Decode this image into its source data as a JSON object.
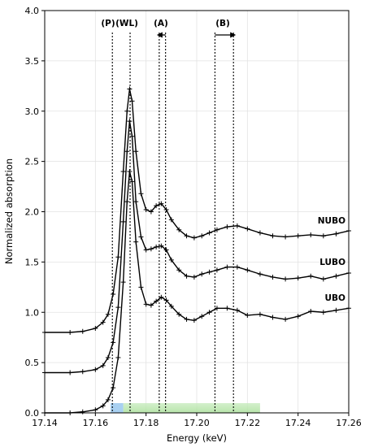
{
  "chart_data": {
    "type": "line",
    "xlabel": "Energy (keV)",
    "ylabel": "Normalized absorption",
    "xlim": [
      17.14,
      17.26
    ],
    "ylim": [
      0.0,
      4.0
    ],
    "x_ticks": [
      "17.14",
      "17.16",
      "17.18",
      "17.20",
      "17.22",
      "17.24",
      "17.26"
    ],
    "y_ticks": [
      "0.0",
      "0.5",
      "1.0",
      "1.5",
      "2.0",
      "2.5",
      "3.0",
      "3.5",
      "4.0"
    ],
    "grid": true,
    "series": [
      {
        "name": "UBO",
        "x": [
          17.14,
          17.15,
          17.155,
          17.16,
          17.163,
          17.165,
          17.167,
          17.169,
          17.171,
          17.1725,
          17.1735,
          17.1745,
          17.176,
          17.178,
          17.18,
          17.182,
          17.184,
          17.186,
          17.188,
          17.19,
          17.193,
          17.196,
          17.199,
          17.202,
          17.205,
          17.208,
          17.212,
          17.216,
          17.22,
          17.225,
          17.23,
          17.235,
          17.24,
          17.245,
          17.25,
          17.255,
          17.26
        ],
        "y": [
          0.0,
          0.0,
          0.01,
          0.03,
          0.07,
          0.13,
          0.25,
          0.55,
          1.3,
          2.1,
          2.4,
          2.3,
          1.7,
          1.25,
          1.08,
          1.07,
          1.11,
          1.15,
          1.12,
          1.06,
          0.98,
          0.93,
          0.92,
          0.96,
          1.0,
          1.04,
          1.04,
          1.02,
          0.97,
          0.98,
          0.95,
          0.93,
          0.96,
          1.01,
          1.0,
          1.02,
          1.04
        ]
      },
      {
        "name": "LUBO",
        "x": [
          17.14,
          17.15,
          17.155,
          17.16,
          17.163,
          17.165,
          17.167,
          17.169,
          17.171,
          17.1725,
          17.1735,
          17.1745,
          17.176,
          17.178,
          17.18,
          17.182,
          17.184,
          17.186,
          17.188,
          17.19,
          17.193,
          17.196,
          17.199,
          17.202,
          17.205,
          17.208,
          17.212,
          17.216,
          17.22,
          17.225,
          17.23,
          17.235,
          17.24,
          17.245,
          17.25,
          17.255,
          17.26
        ],
        "y": [
          0.4,
          0.4,
          0.41,
          0.43,
          0.47,
          0.55,
          0.7,
          1.05,
          1.9,
          2.6,
          2.9,
          2.75,
          2.1,
          1.75,
          1.62,
          1.63,
          1.65,
          1.66,
          1.62,
          1.52,
          1.42,
          1.36,
          1.35,
          1.38,
          1.4,
          1.42,
          1.45,
          1.45,
          1.42,
          1.38,
          1.35,
          1.33,
          1.34,
          1.36,
          1.33,
          1.36,
          1.39
        ]
      },
      {
        "name": "NUBO",
        "x": [
          17.14,
          17.15,
          17.155,
          17.16,
          17.163,
          17.165,
          17.167,
          17.169,
          17.171,
          17.1725,
          17.1735,
          17.1745,
          17.176,
          17.178,
          17.18,
          17.182,
          17.184,
          17.186,
          17.188,
          17.19,
          17.193,
          17.196,
          17.199,
          17.202,
          17.205,
          17.208,
          17.212,
          17.216,
          17.22,
          17.225,
          17.23,
          17.235,
          17.24,
          17.245,
          17.25,
          17.255,
          17.26
        ],
        "y": [
          0.8,
          0.8,
          0.81,
          0.84,
          0.9,
          0.98,
          1.18,
          1.55,
          2.4,
          3.0,
          3.22,
          3.1,
          2.6,
          2.18,
          2.02,
          2.0,
          2.06,
          2.08,
          2.02,
          1.92,
          1.82,
          1.76,
          1.74,
          1.76,
          1.79,
          1.82,
          1.85,
          1.86,
          1.83,
          1.79,
          1.76,
          1.75,
          1.76,
          1.77,
          1.76,
          1.78,
          1.81
        ]
      }
    ],
    "vlines": [
      {
        "label": "(P)",
        "x": 17.1667
      },
      {
        "label": "(WL)",
        "x": 17.1737
      },
      {
        "label": "(A)",
        "x": 17.1852,
        "x2": 17.1877,
        "arrow": "left"
      },
      {
        "label": "(B)",
        "x": 17.2072,
        "x2": 17.2145,
        "arrow": "right"
      }
    ],
    "bands": [
      {
        "x0": 17.166,
        "x1": 17.171,
        "color": "#9ecbf0"
      },
      {
        "x0": 17.171,
        "x1": 17.225,
        "color": "#b5e4a8"
      }
    ],
    "marker": "+",
    "line_color": "#000000"
  }
}
